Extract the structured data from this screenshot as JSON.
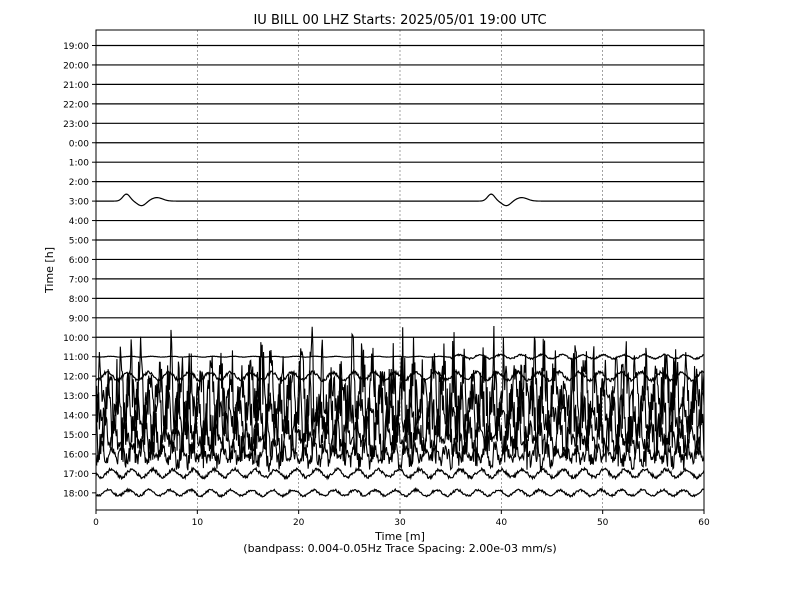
{
  "chart_data": {
    "type": "line",
    "title": "IU BILL 00 LHZ  Starts: 2025/05/01 19:00 UTC",
    "xlabel": "Time [m]",
    "ylabel": "Time [h]",
    "footnote": "(bandpass: 0.004-0.05Hz  Trace Spacing: 2.00e-03 mm/s)",
    "xlim": [
      0,
      60
    ],
    "x_ticks": [
      "0",
      "10",
      "20",
      "30",
      "40",
      "50",
      "60"
    ],
    "y_tick_labels": [
      "19:00",
      "20:00",
      "21:00",
      "22:00",
      "23:00",
      "0:00",
      "1:00",
      "2:00",
      "3:00",
      "4:00",
      "5:00",
      "6:00",
      "7:00",
      "8:00",
      "9:00",
      "10:00",
      "11:00",
      "12:00",
      "13:00",
      "14:00",
      "15:00",
      "16:00",
      "17:00",
      "18:00"
    ],
    "x_grid": "dashed vertical lines at each x tick",
    "trace_color": "#000000",
    "trace_activity": [
      {
        "hour": "19:00",
        "amplitude": 0.0
      },
      {
        "hour": "20:00",
        "amplitude": 0.0
      },
      {
        "hour": "21:00",
        "amplitude": 0.0
      },
      {
        "hour": "22:00",
        "amplitude": 0.0
      },
      {
        "hour": "23:00",
        "amplitude": 0.0
      },
      {
        "hour": "0:00",
        "amplitude": 0.0
      },
      {
        "hour": "1:00",
        "amplitude": 0.0
      },
      {
        "hour": "2:00",
        "amplitude": 0.0
      },
      {
        "hour": "3:00",
        "amplitude": 0.1,
        "note": "small bumps near x=3-6 and x=39-43"
      },
      {
        "hour": "4:00",
        "amplitude": 0.0
      },
      {
        "hour": "5:00",
        "amplitude": 0.0
      },
      {
        "hour": "6:00",
        "amplitude": 0.0
      },
      {
        "hour": "7:00",
        "amplitude": 0.0
      },
      {
        "hour": "8:00",
        "amplitude": 0.0
      },
      {
        "hour": "9:00",
        "amplitude": 0.0
      },
      {
        "hour": "10:00",
        "amplitude": 0.0
      },
      {
        "hour": "11:00",
        "amplitude": 0.2,
        "note": "small oscillations from x~35"
      },
      {
        "hour": "12:00",
        "amplitude": 0.4
      },
      {
        "hour": "13:00",
        "amplitude": 3.0,
        "note": "large oscillations across whole window"
      },
      {
        "hour": "14:00",
        "amplitude": 2.5
      },
      {
        "hour": "15:00",
        "amplitude": 1.5
      },
      {
        "hour": "16:00",
        "amplitude": 0.8
      },
      {
        "hour": "17:00",
        "amplitude": 0.4
      },
      {
        "hour": "18:00",
        "amplitude": 0.3
      }
    ]
  }
}
